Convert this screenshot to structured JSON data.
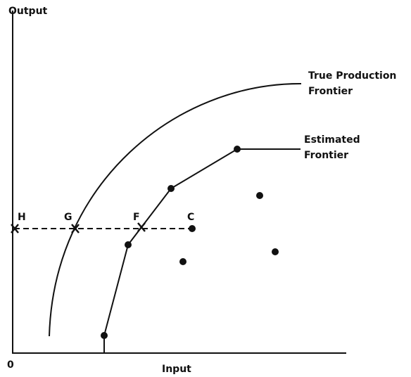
{
  "axes": {
    "y_label": "Output",
    "x_label": "Input",
    "origin": "0"
  },
  "frontiers": [
    {
      "label_lines": [
        "True Production",
        "Frontier"
      ]
    },
    {
      "label_lines": [
        "Estimated",
        "Frontier"
      ]
    }
  ],
  "points": [
    "H",
    "G",
    "F",
    "C"
  ]
}
